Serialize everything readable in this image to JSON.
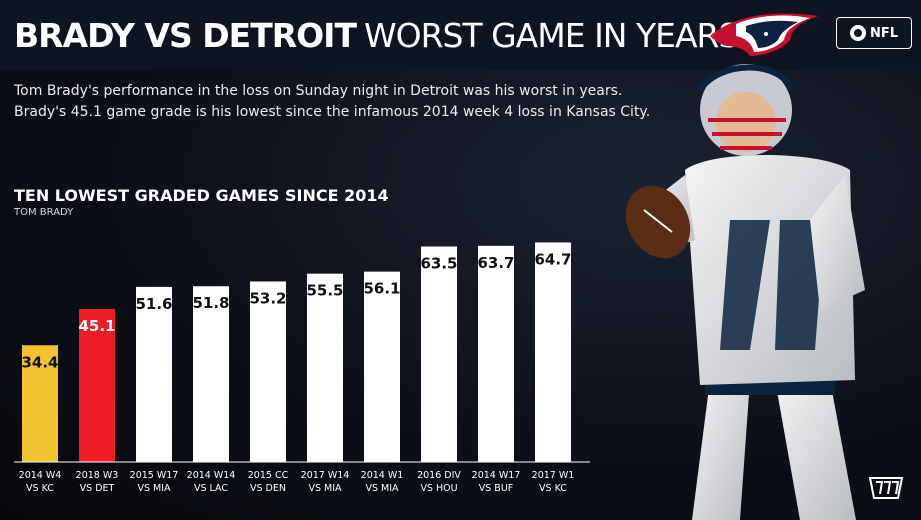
{
  "header": {
    "title_bold": "BRADY VS DETROIT",
    "title_light": "WORST GAME IN YEARS",
    "network_label": "NFL",
    "team_logo_icon": "patriots-logo-icon",
    "network_logo_icon": "cbs-eye-icon"
  },
  "intro": {
    "line1": "Tom Brady's performance in the loss on Sunday night in Detroit was his worst in years.",
    "line2": "Brady's 45.1 game grade is his lowest since the infamous 2014 week 4 loss in Kansas City."
  },
  "footer": {
    "brand_icon": "pff-logo-icon"
  },
  "colors": {
    "background": "#0b0d14",
    "bar_default": "#ffffff",
    "bar_2014": "#f2c230",
    "bar_detroit": "#ee1c24",
    "label_dark": "#111111",
    "label_light": "#ffffff"
  },
  "chart_data": {
    "type": "bar",
    "title": "TEN LOWEST GRADED GAMES SINCE 2014",
    "subtitle": "TOM BRADY",
    "categories": [
      [
        "2014 W4",
        "VS KC"
      ],
      [
        "2018 W3",
        "VS DET"
      ],
      [
        "2015 W17",
        "VS MIA"
      ],
      [
        "2014 W14",
        "VS LAC"
      ],
      [
        "2015 CC",
        "VS DEN"
      ],
      [
        "2017 W14",
        "VS MIA"
      ],
      [
        "2014 W1",
        "VS MIA"
      ],
      [
        "2016 DIV",
        "VS HOU"
      ],
      [
        "2014 W17",
        "VS BUF"
      ],
      [
        "2017 W1",
        "VS KC"
      ]
    ],
    "values": [
      34.4,
      45.1,
      51.6,
      51.8,
      53.2,
      55.5,
      56.1,
      63.5,
      63.7,
      64.7
    ],
    "highlight": {
      "0": "#f2c230",
      "1": "#ee1c24"
    },
    "ylim": [
      0,
      70
    ],
    "grid": false,
    "legend": "none"
  }
}
